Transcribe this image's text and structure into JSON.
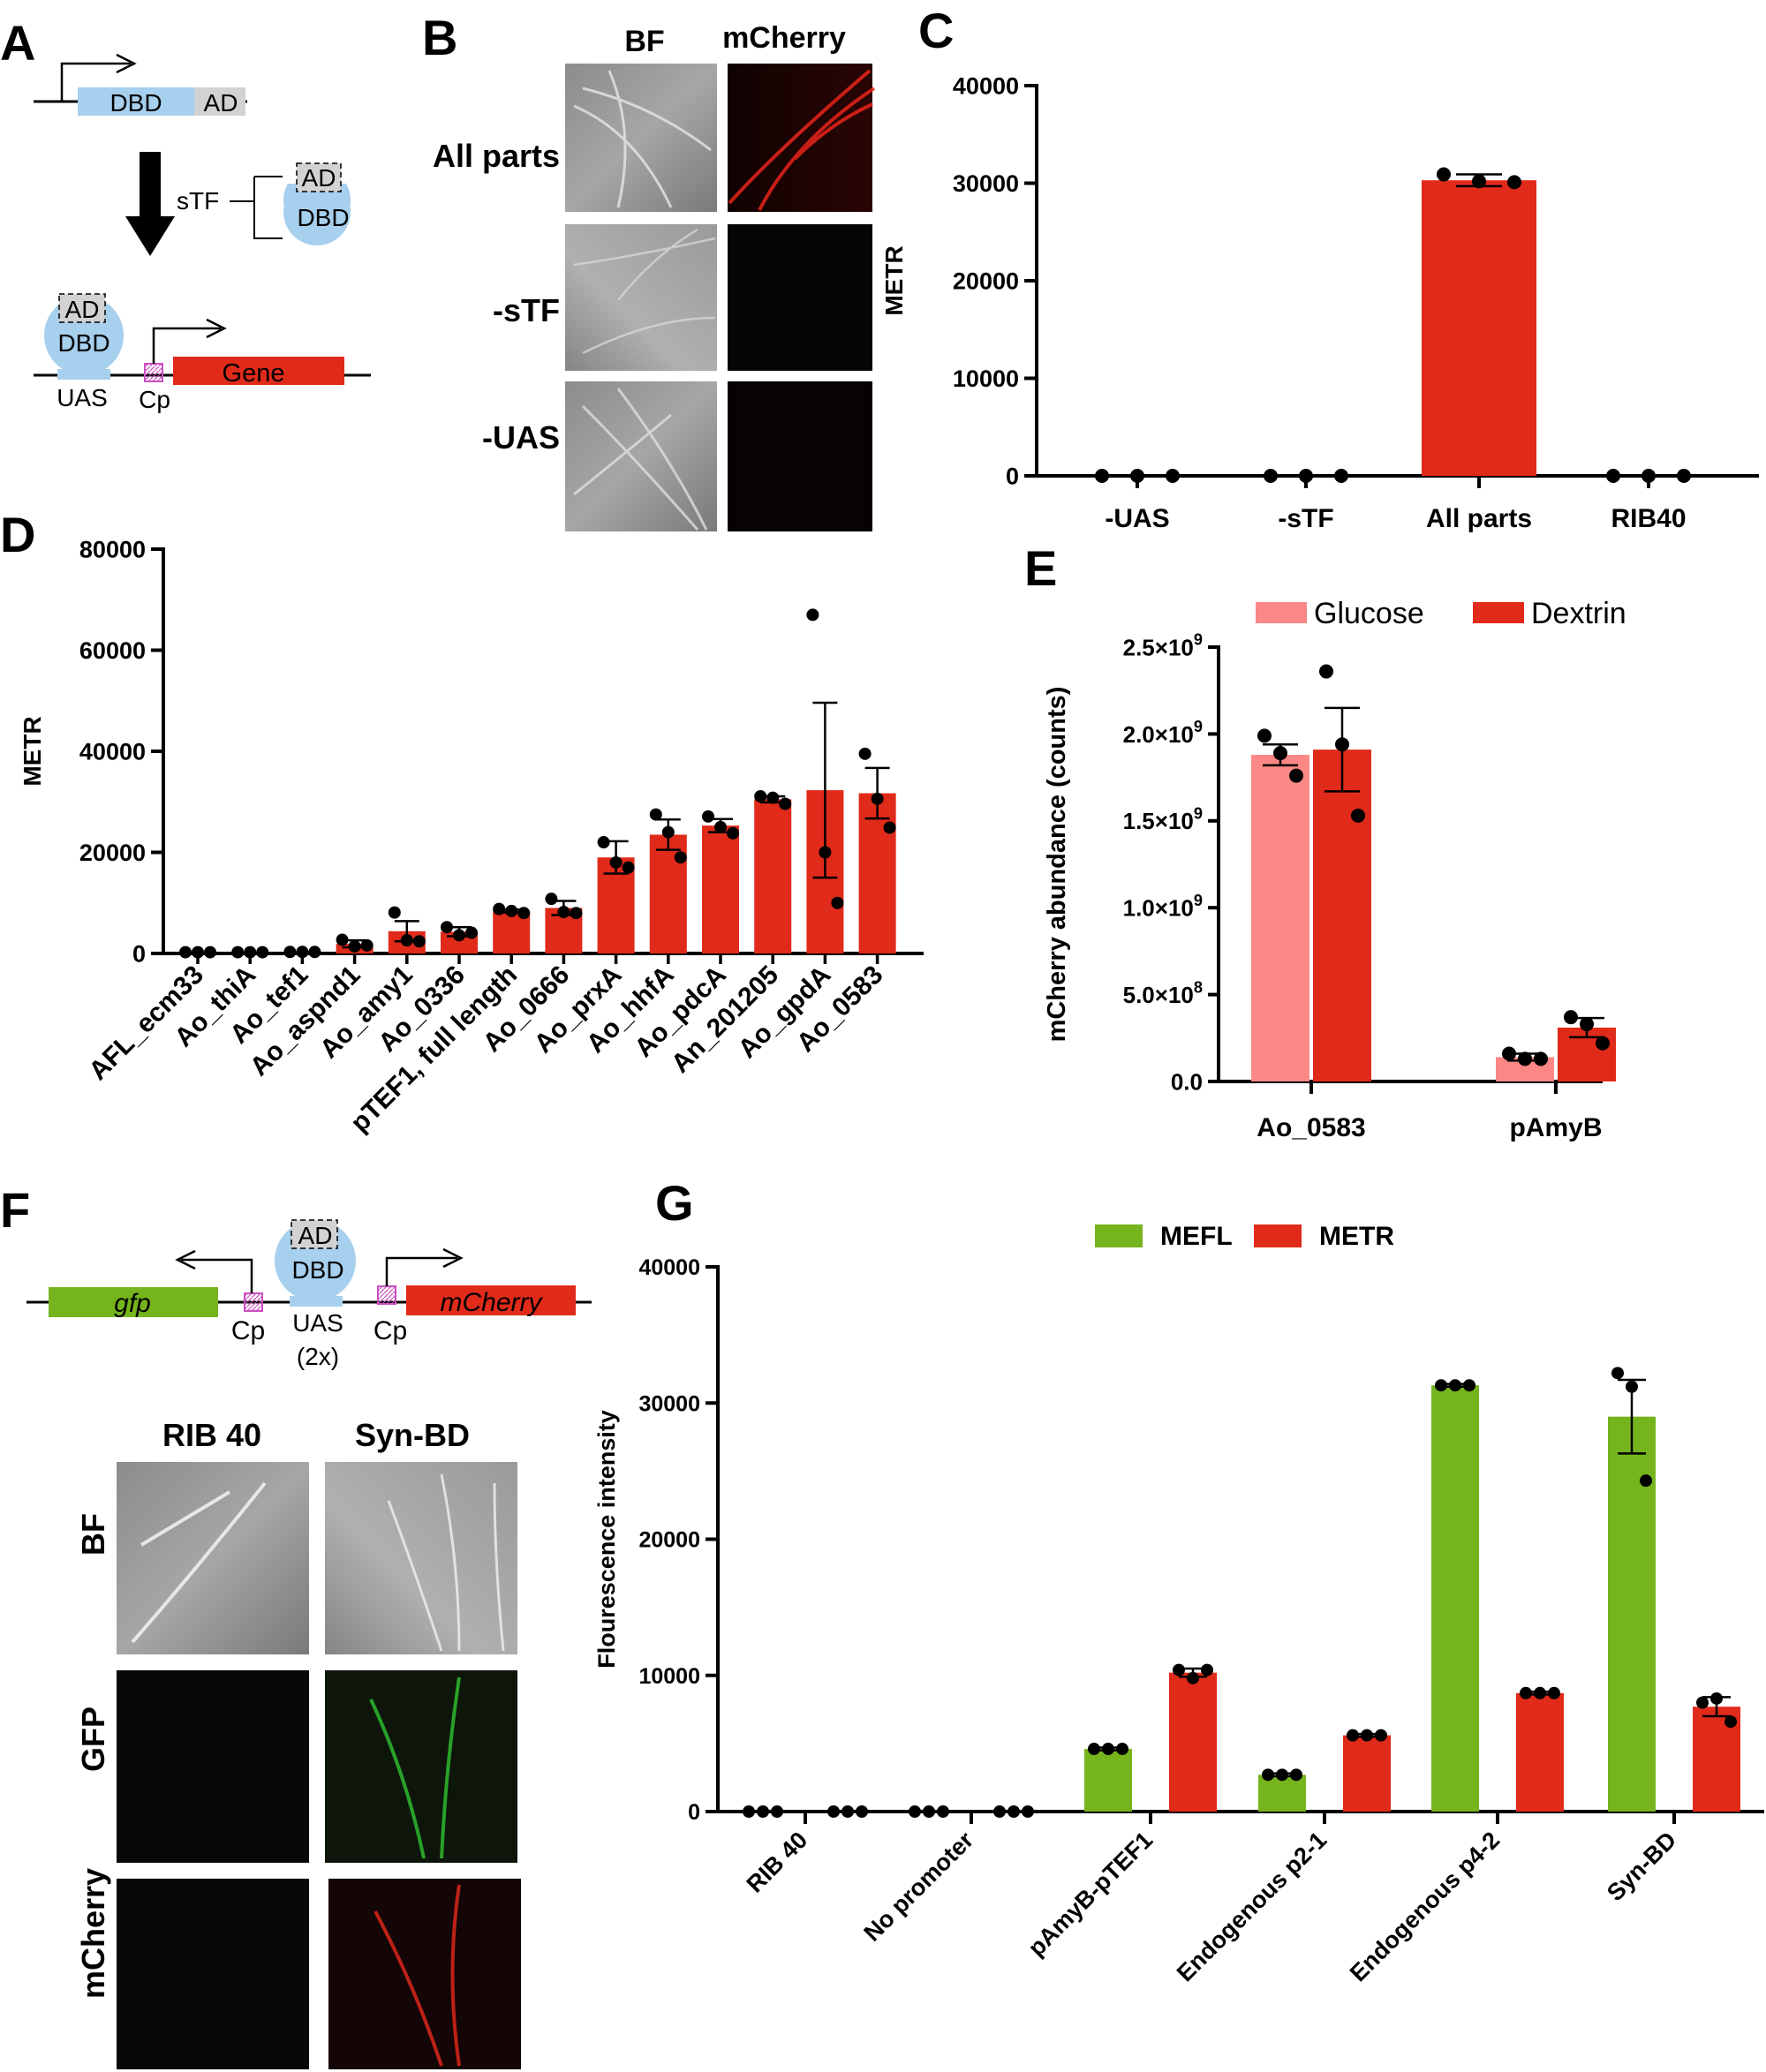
{
  "panels": {
    "A": "A",
    "B": "B",
    "C": "C",
    "D": "D",
    "E": "E",
    "F": "F",
    "G": "G"
  },
  "colors": {
    "red": "#e02a1a",
    "pink": "#fb8886",
    "green": "#76b41e",
    "blue": "#a7cfee",
    "grey": "#d2d2d2",
    "magenta": "#cc4fbf"
  },
  "icons": [
    "promoter-arrow",
    "down-arrow",
    "microscopy-image"
  ],
  "schematic_a": {
    "dbd": "DBD",
    "ad": "AD",
    "stf": "sTF",
    "uas": "UAS",
    "cp": "Cp",
    "gene": "Gene"
  },
  "schematic_f": {
    "gfp": "gfp",
    "mcherry": "mCherry",
    "cp": "Cp",
    "uas": "UAS",
    "uas2": "(2x)",
    "ad": "AD",
    "dbd": "DBD"
  },
  "microscopy_b": {
    "columns": [
      "BF",
      "mCherry"
    ],
    "rows": [
      "All parts",
      "-sTF",
      "-UAS"
    ]
  },
  "microscopy_f": {
    "columns": [
      "RIB 40",
      "Syn-BD"
    ],
    "rows": [
      "BF",
      "GFP",
      "mCherry"
    ]
  },
  "chart_data": [
    {
      "id": "C",
      "type": "bar",
      "title": "",
      "xlabel": "",
      "ylabel": "METR",
      "ylim": [
        0,
        40000
      ],
      "yticks": [
        0,
        10000,
        20000,
        30000,
        40000
      ],
      "ytick_labels": [
        "0",
        "10000",
        "20000",
        "30000",
        "40000"
      ],
      "categories": [
        "-UAS",
        "-sTF",
        "All parts",
        "RIB40"
      ],
      "values": [
        0,
        0,
        30300,
        0
      ],
      "errors": [
        0,
        0,
        600,
        0
      ],
      "points": [
        [
          0,
          0,
          0
        ],
        [
          0,
          0,
          0
        ],
        [
          30900,
          30200,
          30100
        ],
        [
          0,
          0,
          0
        ]
      ]
    },
    {
      "id": "D",
      "type": "bar",
      "title": "",
      "xlabel": "",
      "ylabel": "METR",
      "ylim": [
        0,
        80000
      ],
      "yticks": [
        0,
        20000,
        40000,
        60000,
        80000
      ],
      "ytick_labels": [
        "0",
        "20000",
        "40000",
        "60000",
        "80000"
      ],
      "categories": [
        "AFL_ecm33",
        "Ao_thiA",
        "Ao_tef1",
        "Ao_aspnd1",
        "Ao_amy1",
        "Ao_0336",
        "pTEF1, full length",
        "Ao_0666",
        "Ao_prxA",
        "Ao_hhfA",
        "Ao_pdcA",
        "An_201205",
        "Ao_gpdA",
        "Ao_0583"
      ],
      "values": [
        250,
        250,
        300,
        1900,
        4400,
        4300,
        8400,
        9000,
        19000,
        23500,
        25300,
        30500,
        32300,
        31700
      ],
      "errors": [
        0,
        0,
        0,
        700,
        2000,
        900,
        300,
        1400,
        3200,
        3000,
        1300,
        600,
        17300,
        5000
      ],
      "points": [
        [
          250,
          250,
          250
        ],
        [
          250,
          250,
          250
        ],
        [
          300,
          300,
          300
        ],
        [
          2700,
          1400,
          1600
        ],
        [
          8100,
          2600,
          2400
        ],
        [
          5200,
          3600,
          4100
        ],
        [
          8800,
          8400,
          8000
        ],
        [
          10800,
          8200,
          8000
        ],
        [
          22000,
          18000,
          17000
        ],
        [
          27500,
          24000,
          19000
        ],
        [
          27100,
          25000,
          23800
        ],
        [
          31100,
          30800,
          29600
        ],
        [
          67000,
          20000,
          10000
        ],
        [
          39500,
          30600,
          24900
        ]
      ]
    },
    {
      "id": "E",
      "type": "bar",
      "title": "",
      "xlabel": "",
      "ylabel": "mCherry abundance (counts)",
      "ylim": [
        0,
        2500000000
      ],
      "yticks": [
        0,
        500000000,
        1000000000,
        1500000000,
        2000000000,
        2500000000
      ],
      "ytick_labels": [
        "0.0",
        "5.0×10",
        "1.0×10",
        "1.5×10",
        "2.0×10",
        "2.5×10"
      ],
      "ytick_exponents": [
        "",
        "8",
        "9",
        "9",
        "9",
        "9"
      ],
      "categories": [
        "Ao_0583",
        "pAmyB"
      ],
      "legend_position": "top",
      "series": [
        {
          "name": "Glucose",
          "values": [
            1880000000,
            140000000
          ],
          "errors": [
            60000000,
            20000000
          ],
          "points": [
            [
              1990000000,
              1890000000,
              1760000000
            ],
            [
              160000000,
              130000000,
              130000000
            ]
          ]
        },
        {
          "name": "Dextrin",
          "values": [
            1910000000,
            310000000
          ],
          "errors": [
            240000000,
            55000000
          ],
          "points": [
            [
              2360000000,
              1940000000,
              1530000000
            ],
            [
              370000000,
              330000000,
              220000000
            ]
          ]
        }
      ]
    },
    {
      "id": "G",
      "type": "bar",
      "title": "",
      "xlabel": "",
      "ylabel": "Flourescence intensity",
      "ylim": [
        0,
        40000
      ],
      "yticks": [
        0,
        10000,
        20000,
        30000,
        40000
      ],
      "ytick_labels": [
        "0",
        "10000",
        "20000",
        "30000",
        "40000"
      ],
      "categories": [
        "RIB 40",
        "No promoter",
        "pAmyB-pTEF1",
        "Endogenous p2-1",
        "Endogenous p4-2",
        "Syn-BD"
      ],
      "legend_position": "top",
      "series": [
        {
          "name": "MEFL",
          "values": [
            0,
            0,
            4600,
            2700,
            31300,
            29000
          ],
          "errors": [
            0,
            0,
            100,
            100,
            100,
            2700
          ],
          "points": [
            [
              0,
              0,
              0
            ],
            [
              0,
              0,
              0
            ],
            [
              4600,
              4600,
              4600
            ],
            [
              2700,
              2700,
              2700
            ],
            [
              31300,
              31300,
              31300
            ],
            [
              32200,
              31200,
              24300
            ]
          ]
        },
        {
          "name": "METR",
          "values": [
            0,
            0,
            10200,
            5600,
            8700,
            7700
          ],
          "errors": [
            0,
            0,
            300,
            100,
            100,
            700
          ],
          "points": [
            [
              0,
              0,
              0
            ],
            [
              0,
              0,
              0
            ],
            [
              10400,
              9800,
              10400
            ],
            [
              5600,
              5600,
              5600
            ],
            [
              8700,
              8700,
              8700
            ],
            [
              8000,
              8300,
              6600
            ]
          ]
        }
      ]
    }
  ]
}
